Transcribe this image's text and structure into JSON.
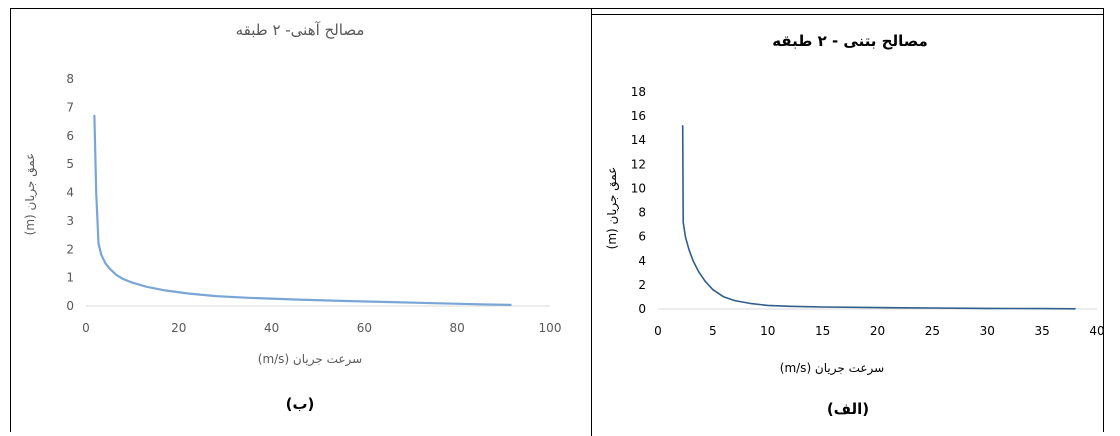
{
  "figure": {
    "label_left": "(ب)",
    "label_right": "(الف)"
  },
  "chart_data": [
    {
      "type": "line",
      "title": "مصالح آهنی- ۲ طبقه",
      "xlabel": "سرعت جریان (m/s)",
      "ylabel": "عمق جریان (m)",
      "xlim": [
        0,
        100
      ],
      "ylim": [
        0,
        8
      ],
      "xticks": [
        0,
        20,
        40,
        60,
        80,
        100
      ],
      "yticks": [
        0,
        1,
        2,
        3,
        4,
        5,
        6,
        7,
        8
      ],
      "grid": false,
      "line_color": "#7AA6D6",
      "series": [
        {
          "x": [
            1.8,
            2.2,
            2.7,
            3.3,
            4.2,
            5.2,
            6.5,
            8.0,
            10.0,
            13.0,
            17.0,
            22.0,
            28.0,
            35.0,
            45.0,
            55.0,
            65.0,
            75.0,
            85.0,
            91.5
          ],
          "values": [
            6.7,
            4.0,
            2.2,
            1.8,
            1.5,
            1.3,
            1.1,
            0.95,
            0.82,
            0.68,
            0.55,
            0.44,
            0.35,
            0.29,
            0.23,
            0.18,
            0.14,
            0.1,
            0.06,
            0.04
          ]
        }
      ]
    },
    {
      "type": "line",
      "title": "مصالح بتنی - ۲ طبقه",
      "xlabel": "سرعت جریان (m/s)",
      "ylabel": "عمق جریان (m)",
      "xlim": [
        0,
        40
      ],
      "ylim": [
        0,
        18
      ],
      "xticks": [
        0,
        5,
        10,
        15,
        20,
        25,
        30,
        35,
        40
      ],
      "yticks": [
        0,
        2,
        4,
        6,
        8,
        10,
        12,
        14,
        16,
        18
      ],
      "grid": false,
      "line_color": "#2F5E8C",
      "series": [
        {
          "x": [
            2.25,
            2.3,
            2.5,
            2.8,
            3.2,
            3.7,
            4.3,
            5.0,
            6.0,
            7.0,
            8.5,
            10.0,
            12.0,
            15.0,
            20.0,
            25.0,
            30.0,
            35.0,
            38.0
          ],
          "values": [
            15.2,
            7.2,
            6.0,
            5.0,
            4.0,
            3.1,
            2.3,
            1.6,
            1.0,
            0.7,
            0.45,
            0.3,
            0.22,
            0.17,
            0.12,
            0.08,
            0.05,
            0.03,
            0.02
          ]
        }
      ]
    }
  ]
}
